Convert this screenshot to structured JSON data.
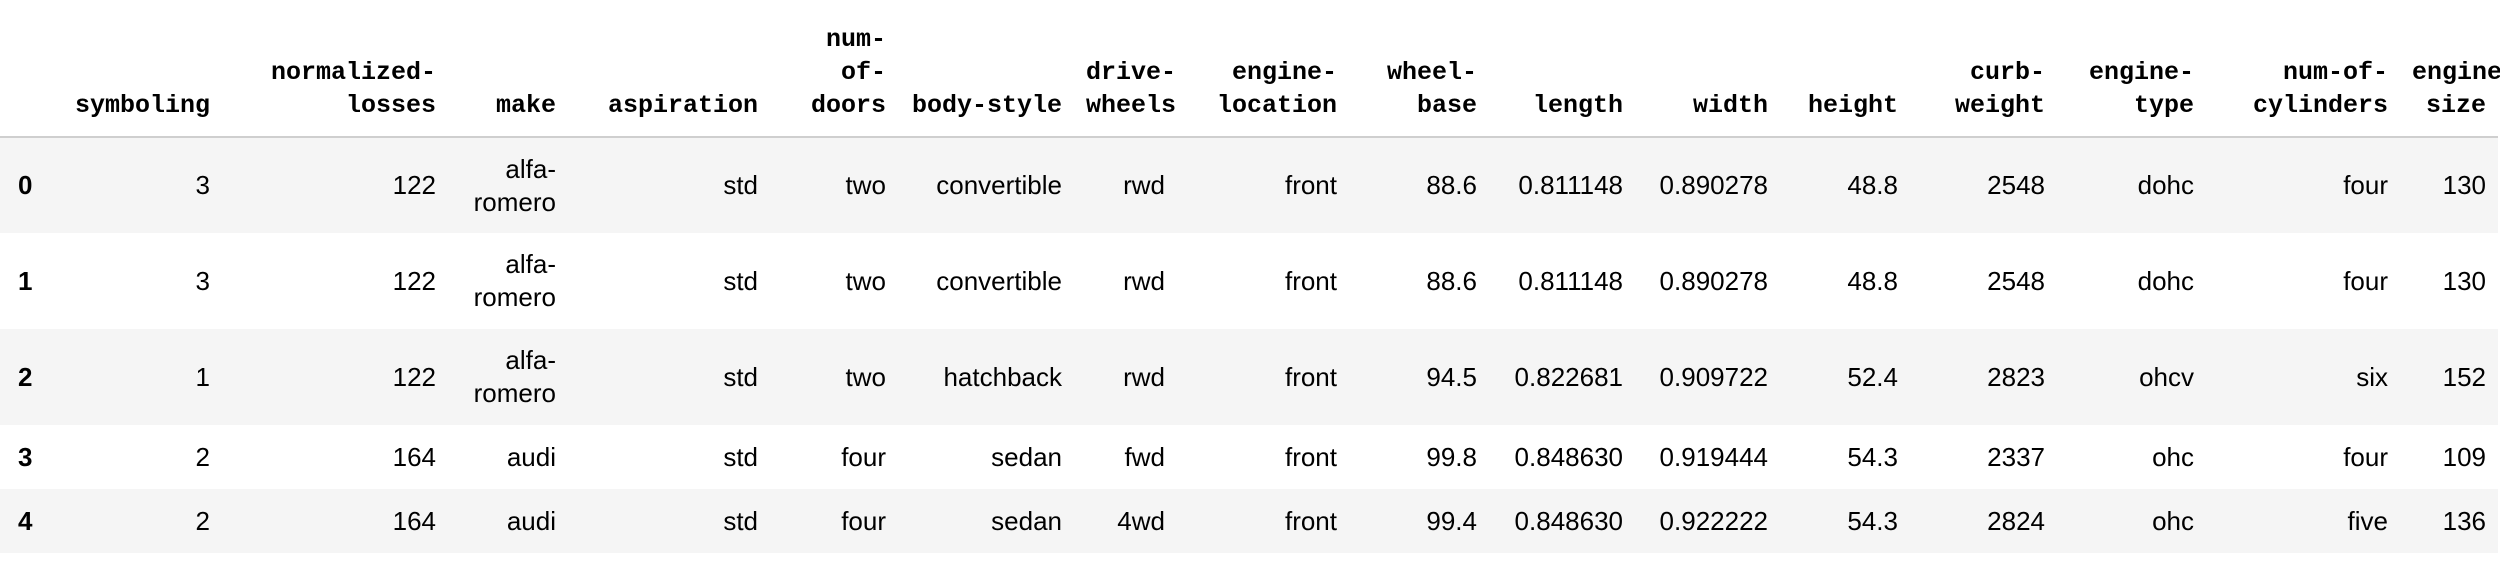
{
  "columns": [
    "",
    "symboling",
    "normalized-losses",
    "make",
    "aspiration",
    "num-of-doors",
    "body-style",
    "drive-wheels",
    "engine-location",
    "wheel-base",
    "length",
    "width",
    "height",
    "curb-weight",
    "engine-type",
    "num-of-cylinders",
    "engine-size"
  ],
  "rows": [
    [
      "0",
      "3",
      "122",
      "alfa-romero",
      "std",
      "two",
      "convertible",
      "rwd",
      "front",
      "88.6",
      "0.811148",
      "0.890278",
      "48.8",
      "2548",
      "dohc",
      "four",
      "130"
    ],
    [
      "1",
      "3",
      "122",
      "alfa-romero",
      "std",
      "two",
      "convertible",
      "rwd",
      "front",
      "88.6",
      "0.811148",
      "0.890278",
      "48.8",
      "2548",
      "dohc",
      "four",
      "130"
    ],
    [
      "2",
      "1",
      "122",
      "alfa-romero",
      "std",
      "two",
      "hatchback",
      "rwd",
      "front",
      "94.5",
      "0.822681",
      "0.909722",
      "52.4",
      "2823",
      "ohcv",
      "six",
      "152"
    ],
    [
      "3",
      "2",
      "164",
      "audi",
      "std",
      "four",
      "sedan",
      "fwd",
      "front",
      "99.8",
      "0.848630",
      "0.919444",
      "54.3",
      "2337",
      "ohc",
      "four",
      "109"
    ],
    [
      "4",
      "2",
      "164",
      "audi",
      "std",
      "four",
      "sedan",
      "4wd",
      "front",
      "99.4",
      "0.848630",
      "0.922222",
      "54.3",
      "2824",
      "ohc",
      "five",
      "136"
    ]
  ]
}
